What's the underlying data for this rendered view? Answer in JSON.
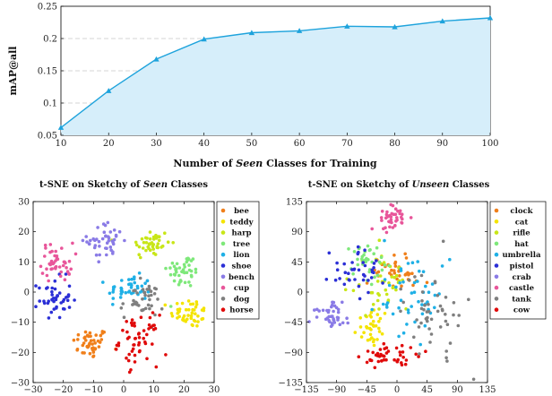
{
  "chart_data": [
    {
      "type": "area",
      "xlabel_parts": [
        "Number of ",
        "Seen",
        " Classes for Training"
      ],
      "ylabel": "mAP@all",
      "x": [
        10,
        20,
        30,
        40,
        50,
        60,
        70,
        80,
        90,
        100
      ],
      "values": [
        0.062,
        0.119,
        0.168,
        0.199,
        0.209,
        0.212,
        0.219,
        0.218,
        0.227,
        0.232
      ],
      "xlim": [
        10,
        100
      ],
      "ylim": [
        0.05,
        0.25
      ],
      "xticks": [
        "10",
        "20",
        "30",
        "40",
        "50",
        "60",
        "70",
        "80",
        "90",
        "100"
      ],
      "yticks": [
        "0.05",
        "0.1",
        "0.15",
        "0.2",
        "0.25"
      ],
      "grid": "horizontal dashed",
      "line_color": "#1ea3dc",
      "fill_color": "#d6eefa"
    },
    {
      "type": "scatter",
      "title_parts": [
        "t-SNE on Sketchy of ",
        "Seen",
        " Classes"
      ],
      "xlim": [
        -30,
        30
      ],
      "ylim": [
        -30,
        30
      ],
      "xticks": [
        "−30",
        "−20",
        "−10",
        "0",
        "10",
        "20",
        "30"
      ],
      "yticks": [
        "−30",
        "−20",
        "−10",
        "0",
        "10",
        "20",
        "30"
      ],
      "legend": "right",
      "series": [
        {
          "name": "bee",
          "color": "#f07f1a",
          "center": [
            -11,
            -17
          ],
          "spread": [
            3.0,
            2.6
          ],
          "n": 45
        },
        {
          "name": "teddy",
          "color": "#f4e400",
          "center": [
            22,
            -7
          ],
          "spread": [
            3.2,
            2.4
          ],
          "n": 45
        },
        {
          "name": "harp",
          "color": "#c8e617",
          "center": [
            9,
            16
          ],
          "spread": [
            3.2,
            2.6
          ],
          "n": 45
        },
        {
          "name": "tree",
          "color": "#7ee87a",
          "center": [
            20,
            7
          ],
          "spread": [
            2.8,
            2.8
          ],
          "n": 45
        },
        {
          "name": "lion",
          "color": "#1fb0e6",
          "center": [
            2,
            1
          ],
          "spread": [
            3.6,
            2.2
          ],
          "n": 45
        },
        {
          "name": "shoe",
          "color": "#2b2fd6",
          "center": [
            -23,
            -2
          ],
          "spread": [
            2.8,
            3.4
          ],
          "n": 45
        },
        {
          "name": "bench",
          "color": "#8a7be6",
          "center": [
            -6,
            17
          ],
          "spread": [
            3.0,
            3.0
          ],
          "n": 45
        },
        {
          "name": "cup",
          "color": "#e8569a",
          "center": [
            -22,
            10
          ],
          "spread": [
            2.6,
            3.2
          ],
          "n": 45
        },
        {
          "name": "dog",
          "color": "#7f7f7f",
          "center": [
            6,
            -3
          ],
          "spread": [
            3.6,
            3.0
          ],
          "n": 40
        },
        {
          "name": "horse",
          "color": "#e00a0a",
          "center": [
            5,
            -16
          ],
          "spread": [
            3.2,
            4.2
          ],
          "n": 55
        }
      ]
    },
    {
      "type": "scatter",
      "title_parts": [
        "t-SNE on Sketchy of ",
        "Unseen",
        " Classes"
      ],
      "xlim": [
        -135,
        135
      ],
      "ylim": [
        -135,
        135
      ],
      "xticks": [
        "−135",
        "−90",
        "−45",
        "0",
        "45",
        "90",
        "135"
      ],
      "yticks": [
        "−135",
        "−90",
        "−45",
        "0",
        "45",
        "90",
        "135"
      ],
      "legend": "right",
      "series": [
        {
          "name": "clock",
          "color": "#f07f1a",
          "center": [
            0,
            30
          ],
          "spread": [
            22,
            14
          ],
          "n": 40
        },
        {
          "name": "cat",
          "color": "#f4e400",
          "center": [
            -40,
            -55
          ],
          "spread": [
            10,
            12
          ],
          "n": 35
        },
        {
          "name": "rifle",
          "color": "#c8e617",
          "center": [
            -20,
            10
          ],
          "spread": [
            24,
            22
          ],
          "n": 40
        },
        {
          "name": "hat",
          "color": "#7ee87a",
          "center": [
            -45,
            50
          ],
          "spread": [
            18,
            16
          ],
          "n": 35
        },
        {
          "name": "umbrella",
          "color": "#1fb0e6",
          "center": [
            20,
            -10
          ],
          "spread": [
            30,
            28
          ],
          "n": 50
        },
        {
          "name": "pistol",
          "color": "#2b2fd6",
          "center": [
            -55,
            30
          ],
          "spread": [
            22,
            16
          ],
          "n": 40
        },
        {
          "name": "crab",
          "color": "#8a7be6",
          "center": [
            -100,
            -35
          ],
          "spread": [
            14,
            10
          ],
          "n": 40
        },
        {
          "name": "castle",
          "color": "#e8569a",
          "center": [
            -10,
            110
          ],
          "spread": [
            12,
            10
          ],
          "n": 40
        },
        {
          "name": "tank",
          "color": "#7f7f7f",
          "center": [
            55,
            -30
          ],
          "spread": [
            22,
            30
          ],
          "n": 50
        },
        {
          "name": "cow",
          "color": "#e00a0a",
          "center": [
            -10,
            -95
          ],
          "spread": [
            20,
            10
          ],
          "n": 45
        }
      ]
    }
  ]
}
